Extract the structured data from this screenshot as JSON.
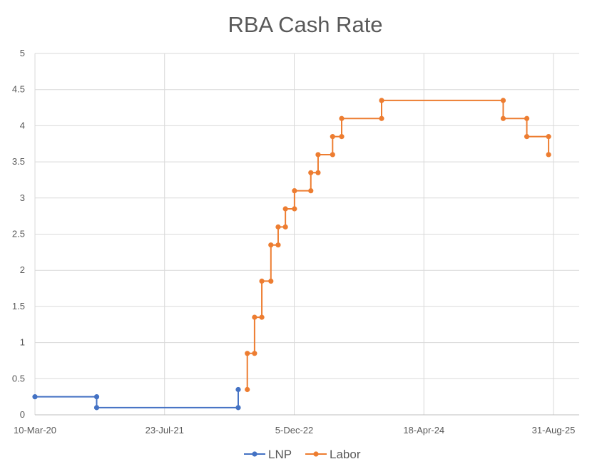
{
  "chart_data": {
    "type": "line",
    "title": "RBA Cash Rate",
    "xlabel": "",
    "ylabel": "",
    "x_type": "date",
    "xlim": [
      "2020-03-10",
      "2025-10-01"
    ],
    "ylim": [
      0,
      5
    ],
    "y_ticks": [
      0,
      0.5,
      1,
      1.5,
      2,
      2.5,
      3,
      3.5,
      4,
      4.5,
      5
    ],
    "x_ticks": [
      {
        "date": "2020-03-10",
        "label": "10-Mar-20"
      },
      {
        "date": "2021-07-23",
        "label": "23-Jul-21"
      },
      {
        "date": "2022-12-05",
        "label": "5-Dec-22"
      },
      {
        "date": "2024-04-18",
        "label": "18-Apr-24"
      },
      {
        "date": "2025-08-31",
        "label": "31-Aug-25"
      }
    ],
    "grid": true,
    "legend_position": "bottom",
    "series": [
      {
        "name": "LNP",
        "color": "#4472c4",
        "points": [
          {
            "x": "2020-03-10",
            "y": 0.25
          },
          {
            "x": "2020-11-03",
            "y": 0.25
          },
          {
            "x": "2020-11-03",
            "y": 0.1
          },
          {
            "x": "2022-05-03",
            "y": 0.1
          },
          {
            "x": "2022-05-03",
            "y": 0.35
          }
        ]
      },
      {
        "name": "Labor",
        "color": "#ed7d31",
        "points": [
          {
            "x": "2022-06-07",
            "y": 0.35
          },
          {
            "x": "2022-06-07",
            "y": 0.85
          },
          {
            "x": "2022-07-05",
            "y": 0.85
          },
          {
            "x": "2022-07-05",
            "y": 1.35
          },
          {
            "x": "2022-08-02",
            "y": 1.35
          },
          {
            "x": "2022-08-02",
            "y": 1.85
          },
          {
            "x": "2022-09-06",
            "y": 1.85
          },
          {
            "x": "2022-09-06",
            "y": 2.35
          },
          {
            "x": "2022-10-04",
            "y": 2.35
          },
          {
            "x": "2022-10-04",
            "y": 2.6
          },
          {
            "x": "2022-11-01",
            "y": 2.6
          },
          {
            "x": "2022-11-01",
            "y": 2.85
          },
          {
            "x": "2022-12-06",
            "y": 2.85
          },
          {
            "x": "2022-12-06",
            "y": 3.1
          },
          {
            "x": "2023-02-07",
            "y": 3.1
          },
          {
            "x": "2023-02-07",
            "y": 3.35
          },
          {
            "x": "2023-03-07",
            "y": 3.35
          },
          {
            "x": "2023-03-07",
            "y": 3.6
          },
          {
            "x": "2023-05-02",
            "y": 3.6
          },
          {
            "x": "2023-05-02",
            "y": 3.85
          },
          {
            "x": "2023-06-06",
            "y": 3.85
          },
          {
            "x": "2023-06-06",
            "y": 4.1
          },
          {
            "x": "2023-11-07",
            "y": 4.1
          },
          {
            "x": "2023-11-07",
            "y": 4.35
          },
          {
            "x": "2025-02-18",
            "y": 4.35
          },
          {
            "x": "2025-02-18",
            "y": 4.1
          },
          {
            "x": "2025-05-20",
            "y": 4.1
          },
          {
            "x": "2025-05-20",
            "y": 3.85
          },
          {
            "x": "2025-08-12",
            "y": 3.85
          },
          {
            "x": "2025-08-12",
            "y": 3.6
          }
        ]
      }
    ]
  }
}
